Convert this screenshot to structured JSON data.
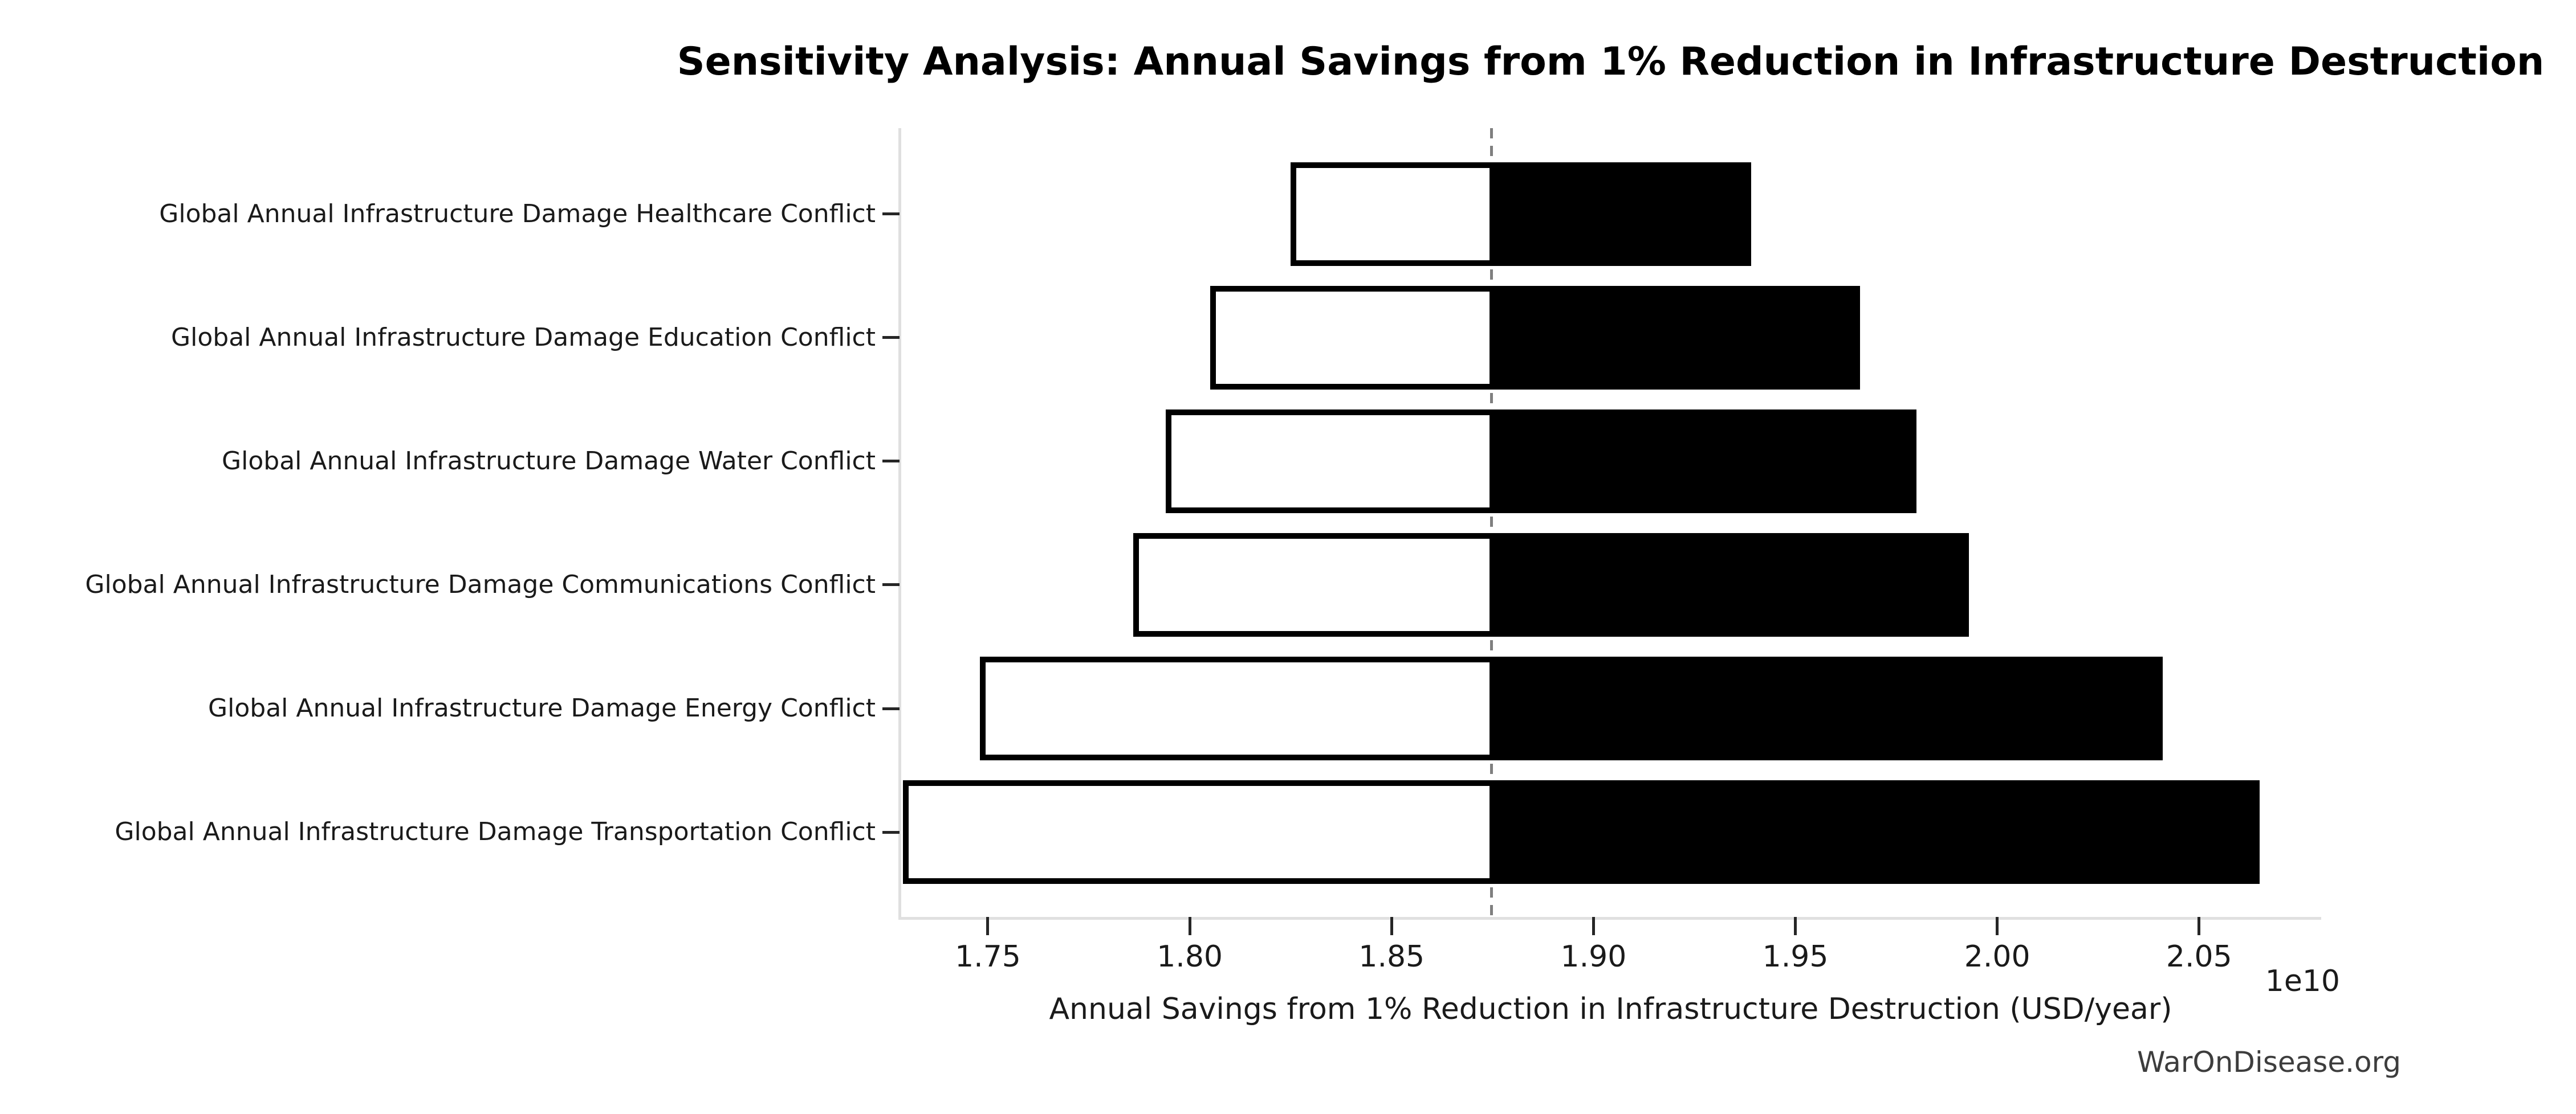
{
  "title": "Sensitivity Analysis: Annual Savings from 1% Reduction in Infrastructure Destruction",
  "watermark": "WarOnDisease.org",
  "colors": {
    "bar_fill": "#000000",
    "bar_low_fill": "#ffffff",
    "bar_edge": "#000000",
    "baseline_dash": "#7f7f7f",
    "spine": "#e0e0e0",
    "tick": "#262626",
    "text": "#1a1a1a",
    "watermark_text": "#3d3d3d"
  },
  "chart_data": {
    "type": "bar",
    "subtype": "tornado-horizontal",
    "title": "Sensitivity Analysis: Annual Savings from 1% Reduction in Infrastructure Destruction",
    "xlabel": "Annual Savings from 1% Reduction in Infrastructure Destruction (USD/year)",
    "ylabel": "",
    "offset_text": "1e10",
    "values_in_units_of": "1e10 USD/year",
    "xlim": [
      1.7284,
      2.0801
    ],
    "baseline": 1.8748,
    "grid": false,
    "legend": false,
    "xticks": [
      1.75,
      1.8,
      1.85,
      1.9,
      1.95,
      2.0,
      2.05
    ],
    "xtick_labels": [
      "1.75",
      "1.80",
      "1.85",
      "1.90",
      "1.95",
      "2.00",
      "2.05"
    ],
    "categories": [
      "Global Annual Infrastructure Damage Healthcare Conflict",
      "Global Annual Infrastructure Damage Education Conflict",
      "Global Annual Infrastructure Damage Water Conflict",
      "Global Annual Infrastructure Damage Communications Conflict",
      "Global Annual Infrastructure Damage Energy Conflict",
      "Global Annual Infrastructure Damage Transportation Conflict"
    ],
    "series": [
      {
        "name": "low",
        "values": [
          1.825,
          1.805,
          1.794,
          1.786,
          1.748,
          1.729
        ]
      },
      {
        "name": "high",
        "values": [
          1.939,
          1.966,
          1.98,
          1.993,
          2.041,
          2.065
        ]
      }
    ]
  }
}
